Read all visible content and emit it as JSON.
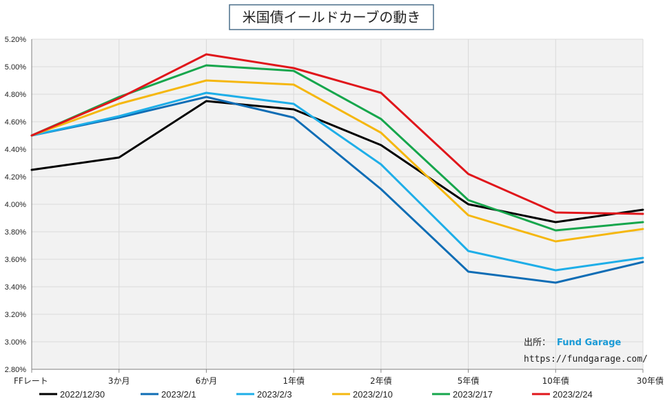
{
  "chart_data": {
    "type": "line",
    "title": "米国債イールドカーブの動き",
    "xlabel": "",
    "ylabel": "",
    "categories": [
      "FFレート",
      "3か月",
      "6か月",
      "1年債",
      "2年債",
      "5年債",
      "10年債",
      "30年債"
    ],
    "ylim": [
      2.8,
      5.2
    ],
    "yticks": [
      "2.80%",
      "3.00%",
      "3.20%",
      "3.40%",
      "3.60%",
      "3.80%",
      "4.00%",
      "4.20%",
      "4.40%",
      "4.60%",
      "4.80%",
      "5.00%",
      "5.20%"
    ],
    "grid": true,
    "legend_position": "bottom",
    "series": [
      {
        "name": "2022/12/30",
        "color": "#000000",
        "values": [
          4.25,
          4.34,
          4.75,
          4.69,
          4.43,
          4.0,
          3.87,
          3.96
        ]
      },
      {
        "name": "2023/2/1",
        "color": "#0f6db5",
        "values": [
          4.5,
          4.63,
          4.78,
          4.63,
          4.11,
          3.51,
          3.43,
          3.58
        ]
      },
      {
        "name": "2023/2/3",
        "color": "#1eaee8",
        "values": [
          4.5,
          4.64,
          4.81,
          4.73,
          4.29,
          3.66,
          3.52,
          3.61
        ]
      },
      {
        "name": "2023/2/10",
        "color": "#f5b70f",
        "values": [
          4.5,
          4.73,
          4.9,
          4.87,
          4.52,
          3.92,
          3.73,
          3.82
        ]
      },
      {
        "name": "2023/2/17",
        "color": "#16a64c",
        "values": [
          4.5,
          4.78,
          5.01,
          4.97,
          4.62,
          4.03,
          3.81,
          3.87
        ]
      },
      {
        "name": "2023/2/24",
        "color": "#e0161b",
        "values": [
          4.5,
          4.77,
          5.09,
          4.99,
          4.81,
          4.22,
          3.94,
          3.93
        ]
      }
    ]
  },
  "source": {
    "label": "出所：",
    "brand": "Fund Garage",
    "url": "https://fundgarage.com/"
  }
}
